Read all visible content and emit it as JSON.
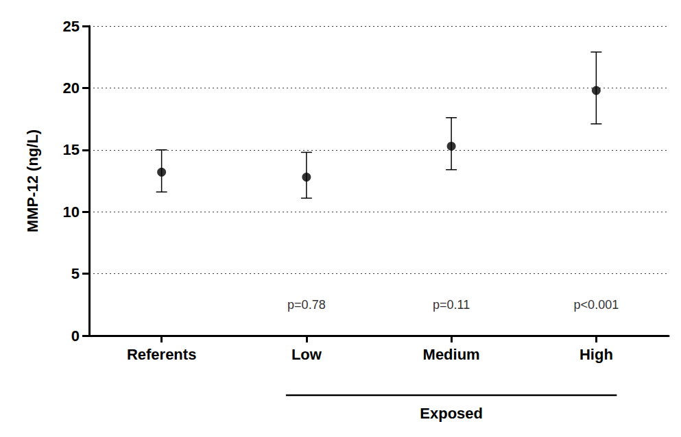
{
  "chart_data": {
    "type": "scatter",
    "y_label": "MMP-12 (ng/L)",
    "categories": [
      "Referents",
      "Low",
      "Medium",
      "High"
    ],
    "values": [
      13.2,
      12.8,
      15.3,
      19.8
    ],
    "error_low": [
      11.6,
      11.1,
      13.4,
      17.1
    ],
    "error_high": [
      15.0,
      14.8,
      17.6,
      22.9
    ],
    "annotations": [
      {
        "category": "Low",
        "y": 2.5,
        "text": "p=0.78"
      },
      {
        "category": "Medium",
        "y": 2.5,
        "text": "p=0.11"
      },
      {
        "category": "High",
        "y": 2.5,
        "text": "p<0.001"
      }
    ],
    "group": {
      "label": "Exposed",
      "categories": [
        "Low",
        "Medium",
        "High"
      ]
    },
    "ylim": [
      0,
      25
    ],
    "yticks": [
      0,
      5,
      10,
      15,
      20,
      25
    ],
    "grid": true,
    "color": "#000000",
    "marker": "circle"
  }
}
